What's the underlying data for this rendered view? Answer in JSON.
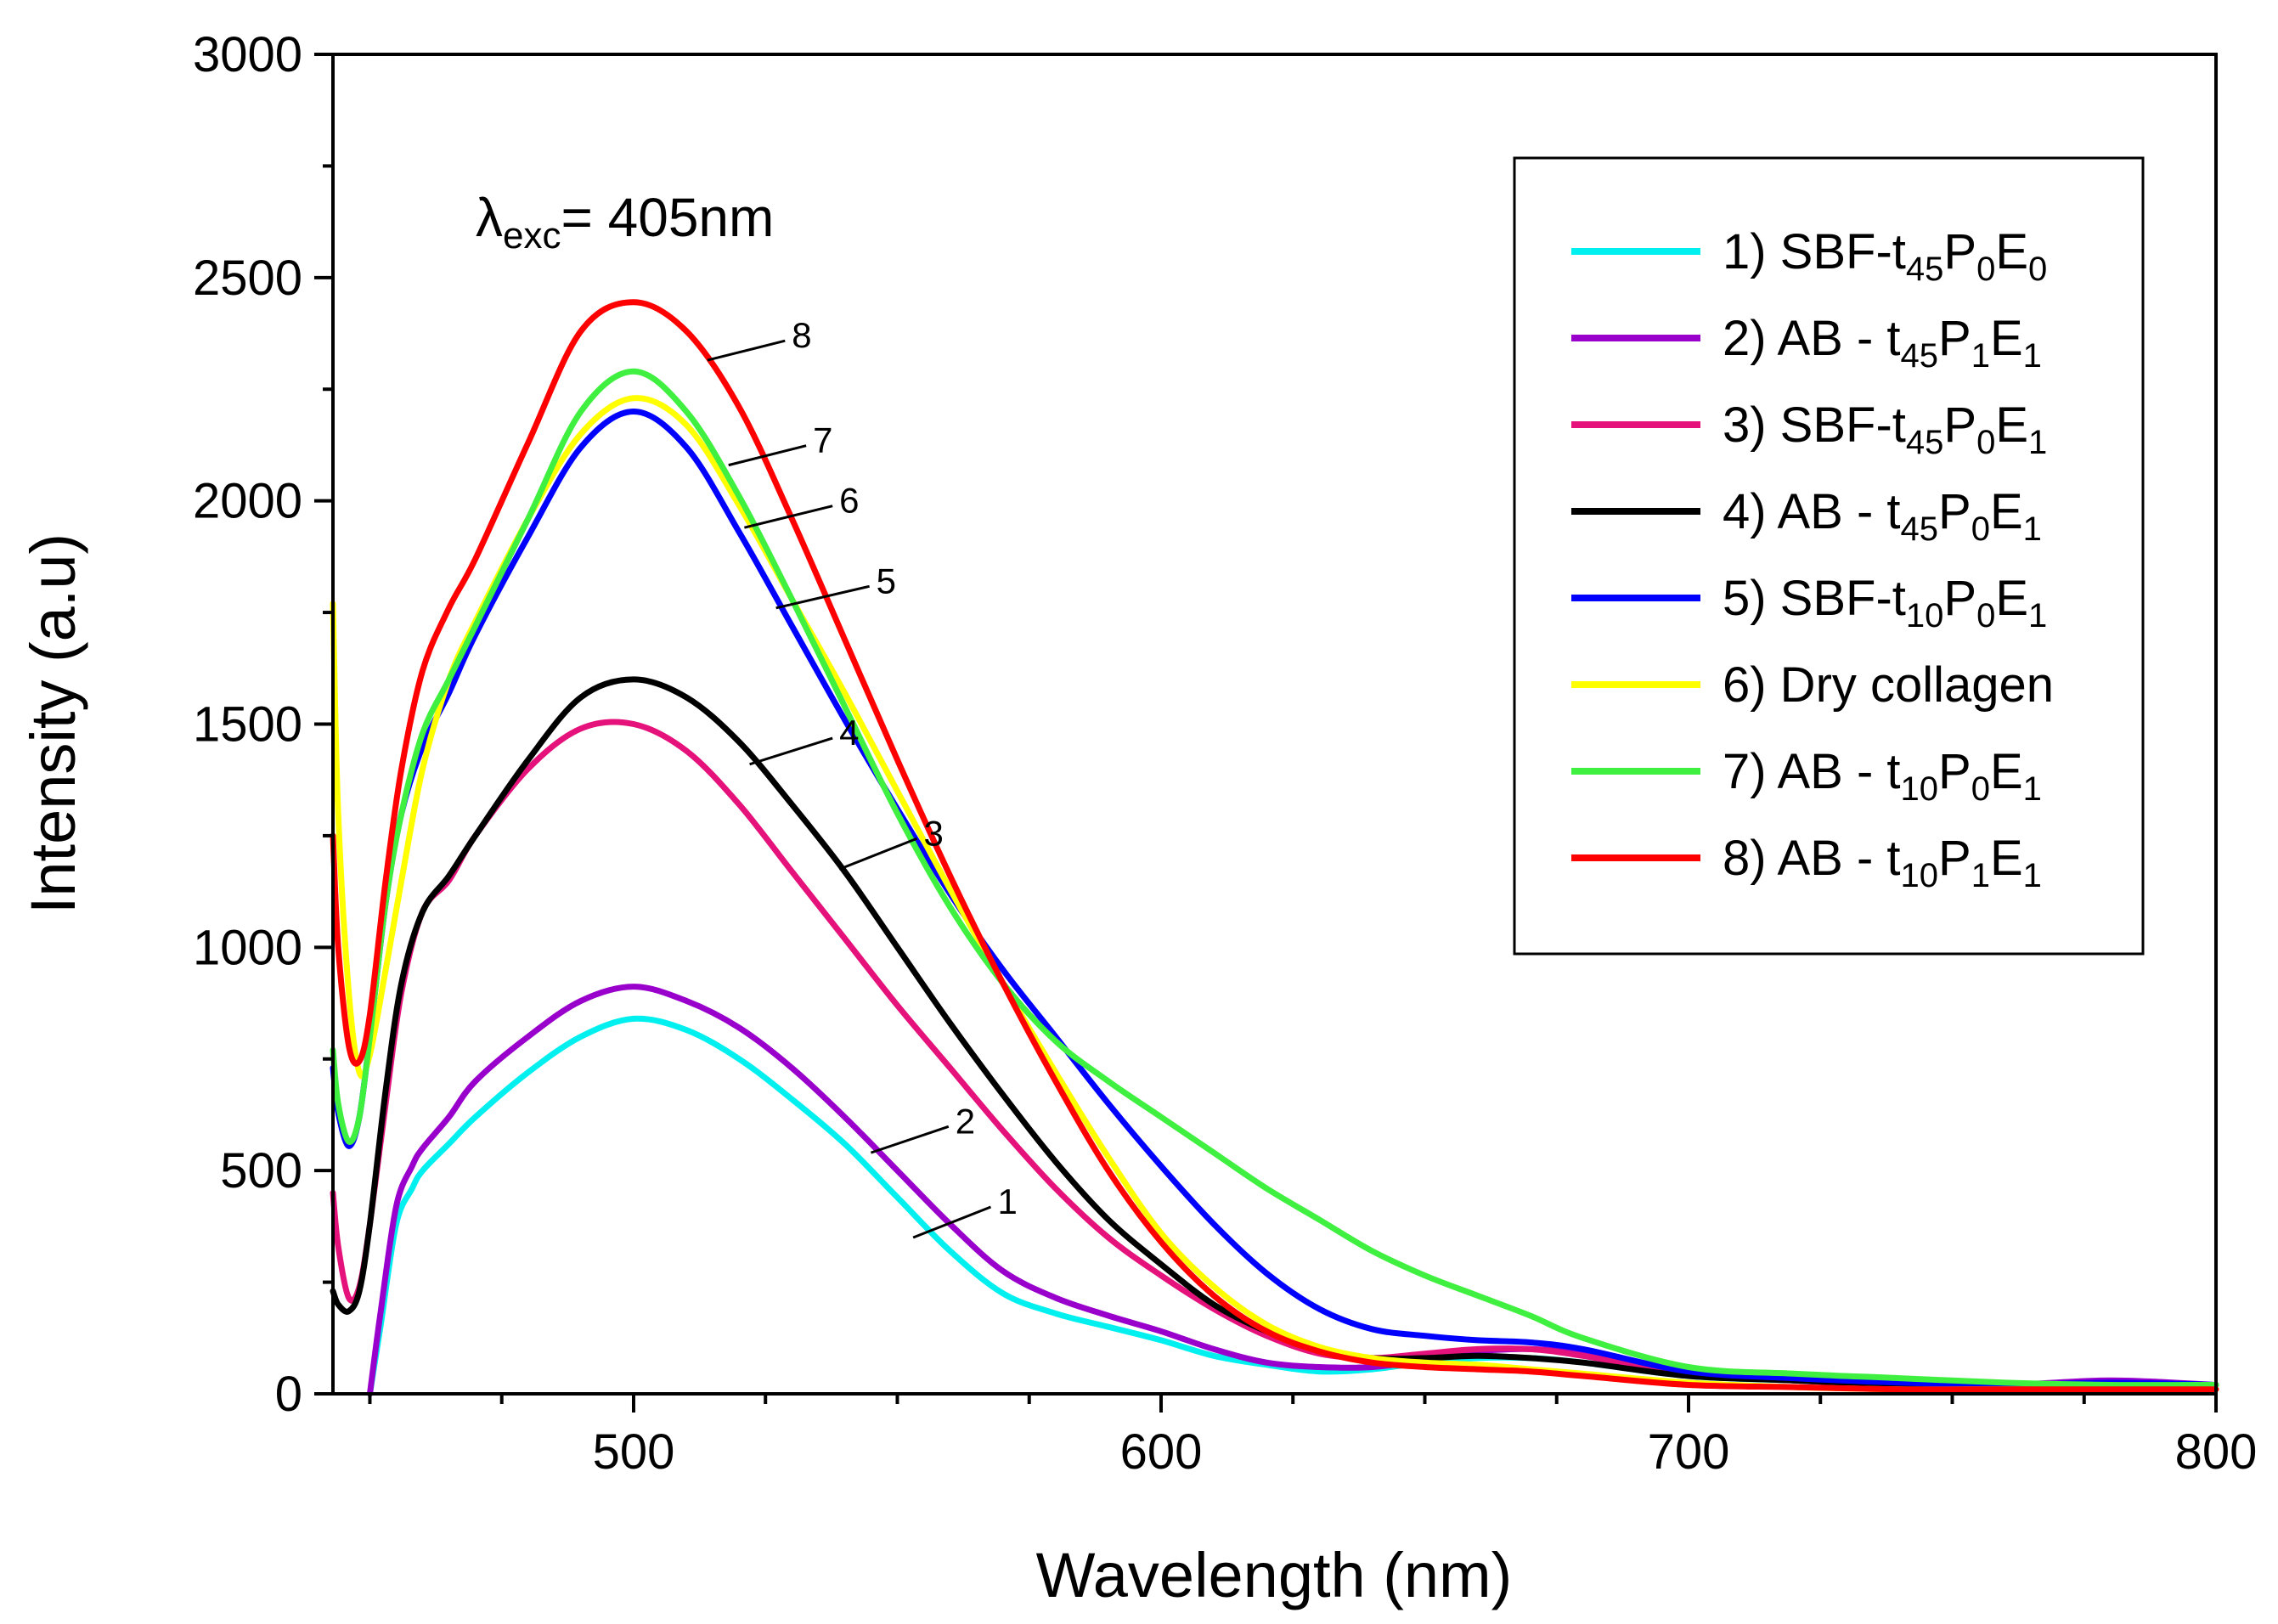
{
  "chart_data": {
    "type": "line",
    "xlabel": "Wavelength (nm)",
    "ylabel": "Intensity (a.u)",
    "xlim": [
      443,
      800
    ],
    "ylim": [
      0,
      3000
    ],
    "x_ticks": [
      500,
      600,
      700,
      800
    ],
    "y_ticks": [
      0,
      500,
      1000,
      1500,
      2000,
      2500,
      3000
    ],
    "annotation": {
      "prefix": "λ",
      "subscript": "exc",
      "suffix": "= 405nm"
    },
    "legend_position": "top-right",
    "series": [
      {
        "id": "1",
        "label": {
          "pre": "1) SBF-t",
          "sub1": "45",
          "mid": "P",
          "sub2": "0",
          "post": "E",
          "sub3": "0"
        },
        "color": "#00f0f0",
        "x": [
          450,
          452,
          455,
          458,
          460,
          465,
          470,
          480,
          490,
          500,
          510,
          520,
          530,
          540,
          550,
          560,
          570,
          580,
          590,
          600,
          610,
          620,
          630,
          640,
          650,
          660,
          670,
          680,
          700,
          720,
          740,
          760,
          780,
          800
        ],
        "y": [
          0,
          150,
          380,
          460,
          500,
          560,
          620,
          720,
          800,
          840,
          815,
          750,
          660,
          560,
          440,
          320,
          225,
          180,
          150,
          120,
          85,
          65,
          50,
          55,
          70,
          80,
          80,
          70,
          40,
          30,
          25,
          20,
          25,
          20
        ]
      },
      {
        "id": "2",
        "label": {
          "pre": "2) AB - t",
          "sub1": "45",
          "mid": "P",
          "sub2": "1",
          "post": "E",
          "sub3": "1"
        },
        "color": "#9900cc",
        "x": [
          450,
          452,
          455,
          458,
          460,
          465,
          470,
          480,
          490,
          500,
          510,
          520,
          530,
          540,
          550,
          560,
          570,
          580,
          590,
          600,
          610,
          620,
          630,
          640,
          650,
          660,
          670,
          680,
          700,
          720,
          740,
          760,
          780,
          800
        ],
        "y": [
          0,
          180,
          420,
          510,
          550,
          620,
          700,
          800,
          880,
          912,
          880,
          820,
          730,
          620,
          500,
          380,
          275,
          215,
          175,
          140,
          100,
          70,
          60,
          60,
          75,
          95,
          100,
          90,
          50,
          35,
          25,
          20,
          30,
          20
        ]
      },
      {
        "id": "3",
        "label": {
          "pre": "3) SBF-t",
          "sub1": "45",
          "mid": "P",
          "sub2": "0",
          "post": "E",
          "sub3": "1"
        },
        "color": "#e6127c",
        "x": [
          443,
          444,
          446,
          448,
          450,
          453,
          456,
          460,
          465,
          470,
          480,
          490,
          500,
          510,
          520,
          530,
          540,
          550,
          560,
          570,
          580,
          590,
          600,
          610,
          620,
          630,
          640,
          650,
          660,
          670,
          680,
          700,
          720,
          740,
          760,
          780,
          800
        ],
        "y": [
          450,
          330,
          215,
          240,
          380,
          650,
          900,
          1080,
          1150,
          1250,
          1400,
          1490,
          1500,
          1440,
          1320,
          1170,
          1020,
          870,
          730,
          590,
          460,
          350,
          265,
          190,
          130,
          90,
          80,
          90,
          100,
          100,
          85,
          45,
          30,
          20,
          15,
          20,
          20
        ]
      },
      {
        "id": "4",
        "label": {
          "pre": "4) AB - t",
          "sub1": "45",
          "mid": "P",
          "sub2": "0",
          "post": "E",
          "sub3": "1"
        },
        "color": "#000000",
        "x": [
          443,
          444,
          446,
          448,
          450,
          453,
          456,
          460,
          465,
          470,
          480,
          490,
          500,
          510,
          520,
          530,
          540,
          550,
          560,
          570,
          580,
          590,
          600,
          610,
          620,
          630,
          640,
          650,
          660,
          670,
          680,
          700,
          720,
          740,
          760,
          780,
          800
        ],
        "y": [
          230,
          200,
          185,
          230,
          380,
          680,
          920,
          1080,
          1160,
          1250,
          1420,
          1560,
          1600,
          1560,
          1460,
          1320,
          1170,
          1000,
          830,
          670,
          520,
          390,
          290,
          200,
          140,
          100,
          80,
          80,
          85,
          80,
          70,
          40,
          30,
          20,
          15,
          20,
          20
        ]
      },
      {
        "id": "5",
        "label": {
          "pre": "5) SBF-t",
          "sub1": "10",
          "mid": "P",
          "sub2": "0",
          "post": "E",
          "sub3": "1"
        },
        "color": "#0000ff",
        "x": [
          443,
          444,
          446,
          448,
          450,
          453,
          456,
          460,
          465,
          470,
          480,
          490,
          500,
          510,
          520,
          530,
          540,
          550,
          560,
          570,
          580,
          590,
          600,
          610,
          620,
          630,
          640,
          650,
          660,
          670,
          680,
          700,
          720,
          740,
          760,
          780,
          800
        ],
        "y": [
          730,
          630,
          555,
          620,
          800,
          1100,
          1300,
          1450,
          1570,
          1700,
          1920,
          2120,
          2200,
          2120,
          1930,
          1720,
          1510,
          1310,
          1120,
          950,
          800,
          650,
          510,
          380,
          270,
          190,
          145,
          130,
          120,
          115,
          100,
          50,
          35,
          25,
          20,
          25,
          20
        ]
      },
      {
        "id": "6",
        "label": {
          "pre": "6) Dry collagen",
          "sub1": "",
          "mid": "",
          "sub2": "",
          "post": "",
          "sub3": ""
        },
        "color": "#ffff00",
        "x": [
          443,
          444,
          446,
          448,
          450,
          453,
          456,
          460,
          465,
          470,
          480,
          490,
          500,
          510,
          520,
          530,
          540,
          550,
          560,
          570,
          580,
          590,
          600,
          610,
          620,
          630,
          640,
          650,
          660,
          670,
          680,
          700,
          720,
          740,
          760,
          780,
          800
        ],
        "y": [
          1770,
          1300,
          900,
          720,
          760,
          950,
          1150,
          1400,
          1600,
          1730,
          1960,
          2150,
          2230,
          2170,
          1990,
          1780,
          1570,
          1350,
          1130,
          920,
          720,
          530,
          360,
          240,
          155,
          105,
          80,
          70,
          65,
          55,
          45,
          25,
          15,
          10,
          10,
          10,
          10
        ]
      },
      {
        "id": "7",
        "label": {
          "pre": "7) AB - t",
          "sub1": "10",
          "mid": "P",
          "sub2": "0",
          "post": "E",
          "sub3": "1"
        },
        "color": "#40f040",
        "x": [
          443,
          444,
          446,
          448,
          450,
          453,
          456,
          460,
          465,
          470,
          480,
          490,
          500,
          510,
          520,
          530,
          540,
          550,
          560,
          570,
          580,
          590,
          600,
          610,
          620,
          630,
          640,
          650,
          660,
          670,
          680,
          700,
          720,
          740,
          760,
          780,
          800
        ],
        "y": [
          770,
          650,
          565,
          620,
          800,
          1100,
          1300,
          1480,
          1600,
          1720,
          1960,
          2200,
          2290,
          2200,
          2010,
          1780,
          1540,
          1300,
          1090,
          920,
          790,
          700,
          620,
          540,
          460,
          390,
          320,
          265,
          220,
          175,
          125,
          60,
          45,
          35,
          25,
          20,
          20
        ]
      },
      {
        "id": "8",
        "label": {
          "pre": "8) AB - t",
          "sub1": "10",
          "mid": "P",
          "sub2": "1",
          "post": "E",
          "sub3": "1"
        },
        "color": "#ff0000",
        "x": [
          443,
          444,
          446,
          448,
          450,
          453,
          456,
          460,
          465,
          470,
          480,
          490,
          500,
          510,
          520,
          530,
          540,
          550,
          560,
          570,
          580,
          590,
          600,
          610,
          620,
          630,
          640,
          650,
          660,
          670,
          680,
          700,
          720,
          740,
          760,
          780,
          800
        ],
        "y": [
          1250,
          1000,
          780,
          745,
          850,
          1150,
          1400,
          1620,
          1760,
          1870,
          2130,
          2380,
          2445,
          2380,
          2210,
          1960,
          1690,
          1420,
          1160,
          920,
          700,
          500,
          340,
          220,
          140,
          95,
          70,
          60,
          55,
          50,
          40,
          20,
          15,
          10,
          10,
          10,
          10
        ]
      }
    ],
    "curve_labels": [
      {
        "text": "1",
        "x": 553,
        "y": 350,
        "tx": 569,
        "ty": 430
      },
      {
        "text": "2",
        "x": 545,
        "y": 540,
        "tx": 561,
        "ty": 610
      },
      {
        "text": "3",
        "x": 539,
        "y": 1175,
        "tx": 555,
        "ty": 1255
      },
      {
        "text": "4",
        "x": 522,
        "y": 1410,
        "tx": 539,
        "ty": 1480
      },
      {
        "text": "5",
        "x": 527,
        "y": 1760,
        "tx": 546,
        "ty": 1820
      },
      {
        "text": "6",
        "x": 521,
        "y": 1940,
        "tx": 539,
        "ty": 2000
      },
      {
        "text": "7",
        "x": 518,
        "y": 2080,
        "tx": 534,
        "ty": 2135
      },
      {
        "text": "8",
        "x": 514,
        "y": 2315,
        "tx": 530,
        "ty": 2370
      }
    ]
  }
}
